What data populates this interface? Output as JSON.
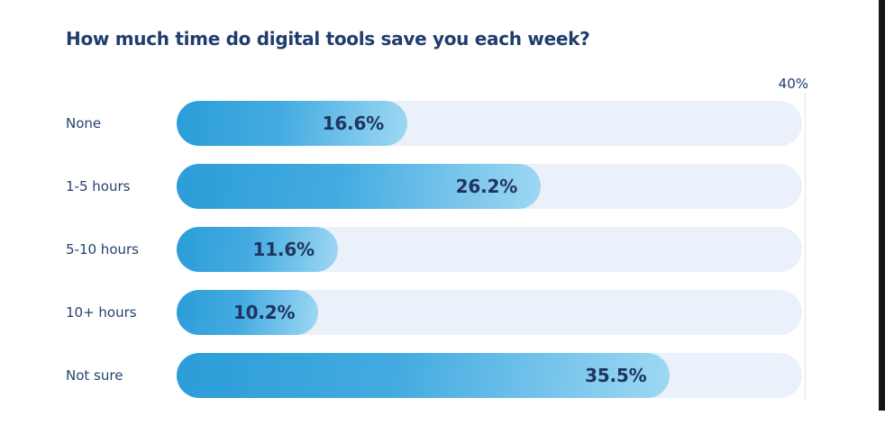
{
  "chart_data": {
    "type": "bar",
    "orientation": "horizontal",
    "title": "How much time do digital tools save you each week?",
    "categories": [
      "None",
      "1-5 hours",
      "5-10 hours",
      "10+ hours",
      "Not sure"
    ],
    "values": [
      16.6,
      26.2,
      11.6,
      10.2,
      35.5
    ],
    "value_labels": [
      "16.6%",
      "26.2%",
      "11.6%",
      "10.2%",
      "35.5%"
    ],
    "axis_max_label": "40%",
    "xlabel": "",
    "ylabel": "",
    "xlim": [
      0,
      45
    ],
    "legend": "none",
    "grid": "single vertical line at right edge of tracks"
  },
  "colors": {
    "background": "#ffffff",
    "title_text": "#1f3d6d",
    "category_text": "#24436f",
    "value_text": "#1d3560",
    "bar_gradient_start": "#2b9dd8",
    "bar_gradient_mid": "#44abe1",
    "bar_gradient_end": "#9ed8f3",
    "track": "#ebf1fa",
    "gridline": "#dfe3ea",
    "edge_strip": "#161616"
  }
}
